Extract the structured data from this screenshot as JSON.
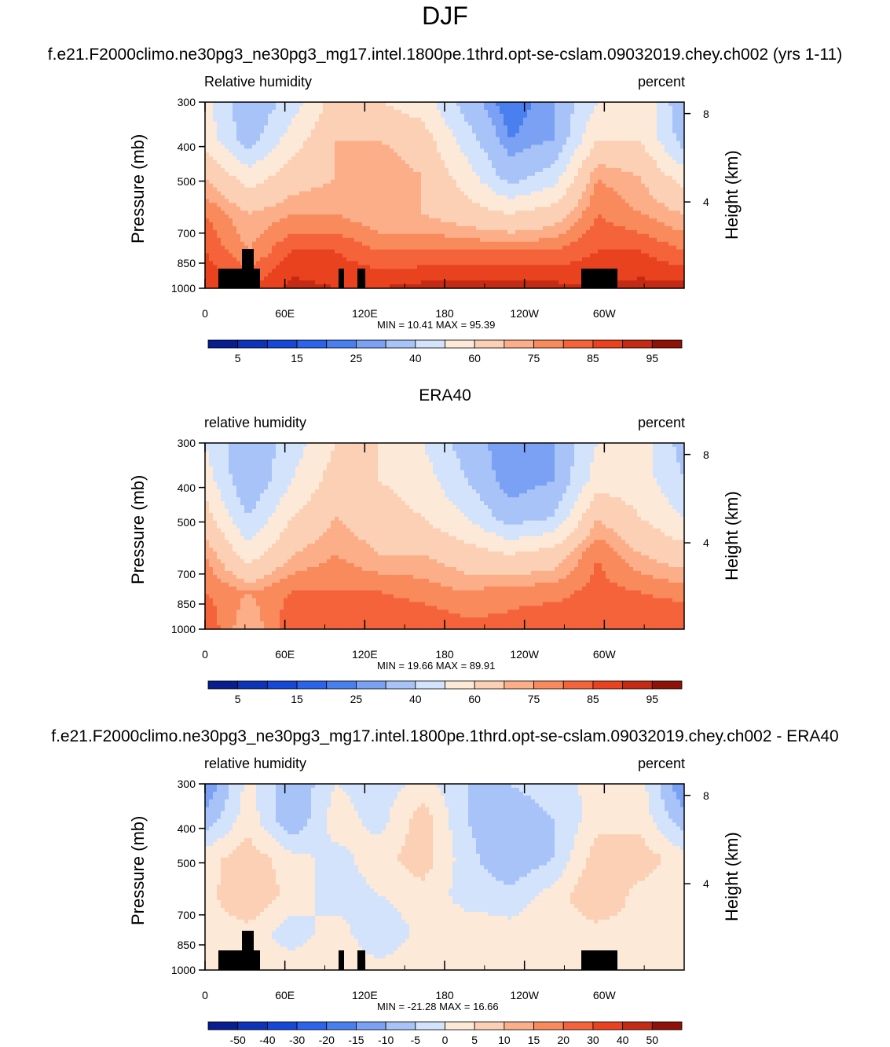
{
  "main_title": "DJF",
  "colors": {
    "land_mask": "#000000"
  },
  "chart_data": [
    {
      "type": "heatmap",
      "title": "f.e21.F2000climo.ne30pg3_ne30pg3_mg17.intel.1800pe.1thrd.opt-se-cslam.09032019.chey.ch002 (yrs 1-11)",
      "left_label": "Relative humidity",
      "right_label": "percent",
      "ylabel": "Pressure (mb)",
      "ylabel_right": "Height (km)",
      "x_ticks": [
        "0",
        "60E",
        "120E",
        "180",
        "120W",
        "60W"
      ],
      "x_tick_values": [
        0,
        60,
        120,
        180,
        240,
        300
      ],
      "xlim": [
        0,
        360
      ],
      "y_ticks": [
        "300",
        "400",
        "500",
        "700",
        "850",
        "1000"
      ],
      "y_tick_values": [
        300,
        400,
        500,
        700,
        850,
        1000
      ],
      "ylim": [
        1000,
        300
      ],
      "y_right_ticks": [
        "8",
        "4"
      ],
      "y_right_tick_values": [
        8,
        4
      ],
      "minmax_text": "MIN =  10.41   MAX =  95.39",
      "min": 10.41,
      "max": 95.39,
      "colorbar": {
        "labels": [
          "5",
          "15",
          "25",
          "40",
          "60",
          "75",
          "85",
          "95"
        ],
        "colors": [
          "#081d8f",
          "#0c33b8",
          "#1747d6",
          "#2b63ea",
          "#4a7ff0",
          "#7aa1f4",
          "#a8c3f7",
          "#d2e3fb",
          "#fde9d8",
          "#fcd0b4",
          "#fbae88",
          "#f98a5c",
          "#f5633a",
          "#e8421f",
          "#c42a14",
          "#8e1207"
        ]
      },
      "land_mask": true,
      "field": {
        "cols": 12,
        "rows": 6,
        "values": [
          [
            55,
            30,
            45,
            65,
            60,
            55,
            35,
            20,
            30,
            50,
            60,
            30
          ],
          [
            55,
            35,
            55,
            70,
            70,
            65,
            45,
            25,
            30,
            60,
            60,
            35
          ],
          [
            70,
            55,
            65,
            70,
            75,
            70,
            55,
            35,
            45,
            75,
            70,
            55
          ],
          [
            80,
            70,
            75,
            75,
            70,
            70,
            65,
            60,
            65,
            80,
            75,
            70
          ],
          [
            85,
            75,
            85,
            85,
            80,
            80,
            80,
            80,
            80,
            85,
            85,
            80
          ],
          [
            90,
            85,
            92,
            90,
            90,
            92,
            92,
            93,
            92,
            90,
            92,
            92
          ]
        ]
      }
    },
    {
      "type": "heatmap",
      "title": "ERA40",
      "left_label": "relative humidity",
      "right_label": "percent",
      "ylabel": "Pressure (mb)",
      "ylabel_right": "Height (km)",
      "x_ticks": [
        "0",
        "60E",
        "120E",
        "180",
        "120W",
        "60W"
      ],
      "x_tick_values": [
        0,
        60,
        120,
        180,
        240,
        300
      ],
      "xlim": [
        0,
        360
      ],
      "y_ticks": [
        "300",
        "400",
        "500",
        "700",
        "850",
        "1000"
      ],
      "y_tick_values": [
        300,
        400,
        500,
        700,
        850,
        1000
      ],
      "ylim": [
        1000,
        300
      ],
      "y_right_ticks": [
        "8",
        "4"
      ],
      "y_right_tick_values": [
        8,
        4
      ],
      "minmax_text": "MIN =  19.66   MAX =  89.91",
      "min": 19.66,
      "max": 89.91,
      "colorbar": {
        "labels": [
          "5",
          "15",
          "25",
          "40",
          "60",
          "75",
          "85",
          "95"
        ],
        "colors": [
          "#081d8f",
          "#0c33b8",
          "#1747d6",
          "#2b63ea",
          "#4a7ff0",
          "#7aa1f4",
          "#a8c3f7",
          "#d2e3fb",
          "#fde9d8",
          "#fcd0b4",
          "#fbae88",
          "#f98a5c",
          "#f5633a",
          "#e8421f",
          "#c42a14",
          "#8e1207"
        ]
      },
      "land_mask": false,
      "field": {
        "cols": 12,
        "rows": 6,
        "values": [
          [
            50,
            30,
            45,
            60,
            60,
            50,
            35,
            25,
            30,
            50,
            55,
            35
          ],
          [
            55,
            30,
            50,
            65,
            60,
            55,
            40,
            25,
            30,
            55,
            55,
            40
          ],
          [
            65,
            40,
            60,
            70,
            65,
            60,
            50,
            35,
            40,
            70,
            60,
            50
          ],
          [
            75,
            55,
            70,
            75,
            70,
            70,
            65,
            60,
            65,
            80,
            70,
            65
          ],
          [
            80,
            75,
            80,
            80,
            80,
            78,
            75,
            78,
            78,
            82,
            80,
            78
          ],
          [
            85,
            70,
            85,
            85,
            85,
            85,
            82,
            82,
            85,
            82,
            85,
            85
          ]
        ]
      }
    },
    {
      "type": "heatmap",
      "title": "f.e21.F2000climo.ne30pg3_ne30pg3_mg17.intel.1800pe.1thrd.opt-se-cslam.09032019.chey.ch002 - ERA40",
      "left_label": "relative humidity",
      "right_label": "percent",
      "ylabel": "Pressure (mb)",
      "ylabel_right": "Height (km)",
      "x_ticks": [
        "0",
        "60E",
        "120E",
        "180",
        "120W",
        "60W"
      ],
      "x_tick_values": [
        0,
        60,
        120,
        180,
        240,
        300
      ],
      "xlim": [
        0,
        360
      ],
      "y_ticks": [
        "300",
        "400",
        "500",
        "700",
        "850",
        "1000"
      ],
      "y_tick_values": [
        300,
        400,
        500,
        700,
        850,
        1000
      ],
      "ylim": [
        1000,
        300
      ],
      "y_right_ticks": [
        "8",
        "4"
      ],
      "y_right_tick_values": [
        8,
        4
      ],
      "minmax_text": "MIN = -21.28   MAX =  16.66",
      "min": -21.28,
      "max": 16.66,
      "colorbar": {
        "labels": [
          "-50",
          "-40",
          "-30",
          "-20",
          "-15",
          "-10",
          "-5",
          "0",
          "5",
          "10",
          "15",
          "20",
          "30",
          "40",
          "50"
        ],
        "colors": [
          "#081d8f",
          "#0c33b8",
          "#1747d6",
          "#2b63ea",
          "#4a7ff0",
          "#7aa1f4",
          "#a8c3f7",
          "#d2e3fb",
          "#fde9d8",
          "#fcd0b4",
          "#fbae88",
          "#f98a5c",
          "#f5633a",
          "#e8421f",
          "#c42a14",
          "#8e1207"
        ]
      },
      "land_mask": true,
      "field": {
        "cols": 12,
        "rows": 6,
        "values": [
          [
            -15,
            2,
            -10,
            0,
            -3,
            2,
            -5,
            -5,
            -3,
            2,
            2,
            -15
          ],
          [
            -8,
            3,
            -10,
            3,
            -2,
            8,
            -5,
            -8,
            -5,
            3,
            3,
            -8
          ],
          [
            3,
            8,
            2,
            -2,
            3,
            8,
            -3,
            -10,
            -5,
            8,
            8,
            2
          ],
          [
            3,
            10,
            3,
            -3,
            0,
            3,
            -2,
            -3,
            2,
            10,
            3,
            2
          ],
          [
            3,
            3,
            -3,
            3,
            -5,
            2,
            3,
            2,
            3,
            3,
            3,
            2
          ],
          [
            3,
            4,
            3,
            4,
            2,
            3,
            5,
            4,
            3,
            3,
            3,
            3
          ]
        ]
      }
    }
  ]
}
